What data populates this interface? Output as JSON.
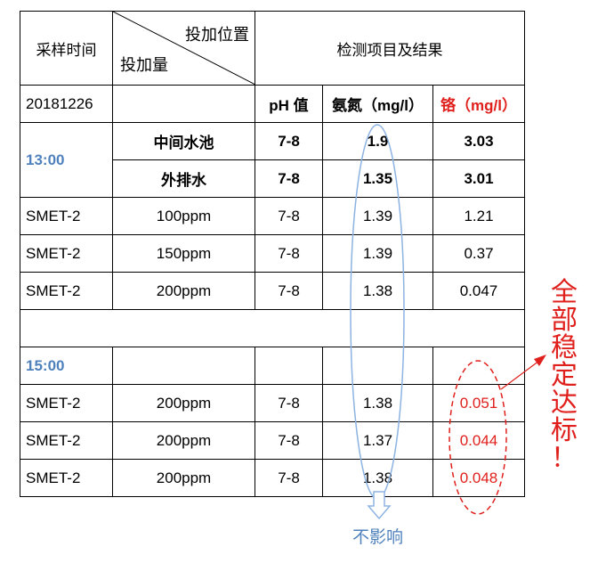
{
  "header": {
    "sample_time": "采样时间",
    "dosing_position": "投加位置",
    "dosing_amount": "投加量",
    "results": "检测项目及结果"
  },
  "units_row": {
    "date": "20181226",
    "ph": "pH 值",
    "ammonia": "氨氮（mg/l）",
    "chromium": "铬（mg/l）"
  },
  "group1": {
    "time": "13:00",
    "rows": [
      {
        "position": "中间水池",
        "ph": "7-8",
        "ammonia": "1.9",
        "chromium": "3.03"
      },
      {
        "position": "外排水",
        "ph": "7-8",
        "ammonia": "1.35",
        "chromium": "3.01"
      }
    ]
  },
  "dosing_rows": [
    {
      "agent": "SMET-2",
      "amount": "100ppm",
      "ph": "7-8",
      "ammonia": "1.39",
      "chromium": "1.21"
    },
    {
      "agent": "SMET-2",
      "amount": "150ppm",
      "ph": "7-8",
      "ammonia": "1.39",
      "chromium": "0.37"
    },
    {
      "agent": "SMET-2",
      "amount": "200ppm",
      "ph": "7-8",
      "ammonia": "1.38",
      "chromium": "0.047"
    }
  ],
  "group2": {
    "time": "15:00",
    "rows": [
      {
        "agent": "SMET-2",
        "amount": "200ppm",
        "ph": "7-8",
        "ammonia": "1.38",
        "chromium": "0.051"
      },
      {
        "agent": "SMET-2",
        "amount": "200ppm",
        "ph": "7-8",
        "ammonia": "1.37",
        "chromium": "0.044"
      },
      {
        "agent": "SMET-2",
        "amount": "200ppm",
        "ph": "7-8",
        "ammonia": "1.38",
        "chromium": "0.048"
      }
    ]
  },
  "annotations": {
    "all_compliant": [
      "全",
      "部",
      "稳",
      "定",
      "达",
      "标",
      "！"
    ],
    "no_effect": "不影响"
  },
  "colors": {
    "blue": "#4f81bd",
    "red": "#e0201c",
    "border": "#000000"
  }
}
